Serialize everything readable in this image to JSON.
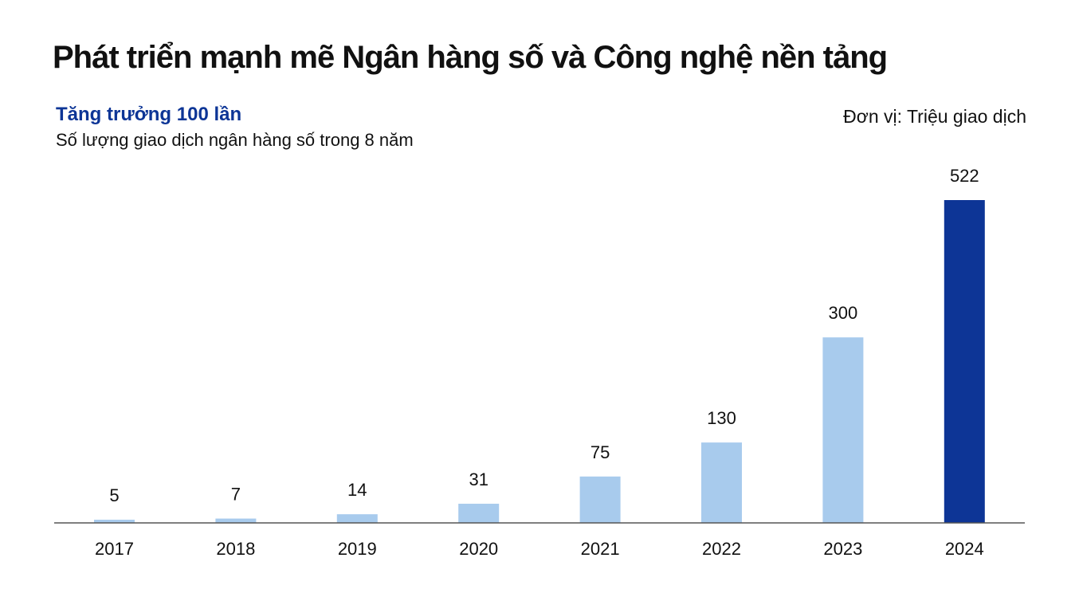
{
  "title": "Phát triển mạnh mẽ Ngân hàng số và Công nghệ nền tảng",
  "subtitle": "Tăng trưởng 100 lần",
  "caption": "Số lượng giao dịch ngân hàng số trong 8 năm",
  "unit_note": "Đơn vị: Triệu giao dịch",
  "colors": {
    "bar_default": "#a8cbed",
    "bar_highlight": "#0d3596",
    "axis": "#555555",
    "subtitle": "#0d3596"
  },
  "chart_data": {
    "type": "bar",
    "categories": [
      "2017",
      "2018",
      "2019",
      "2020",
      "2021",
      "2022",
      "2023",
      "2024"
    ],
    "values": [
      5,
      7,
      14,
      31,
      75,
      130,
      300,
      522
    ],
    "highlight": "2024",
    "ylim": [
      0,
      522
    ],
    "grid": false,
    "xlabel": "",
    "ylabel": ""
  }
}
